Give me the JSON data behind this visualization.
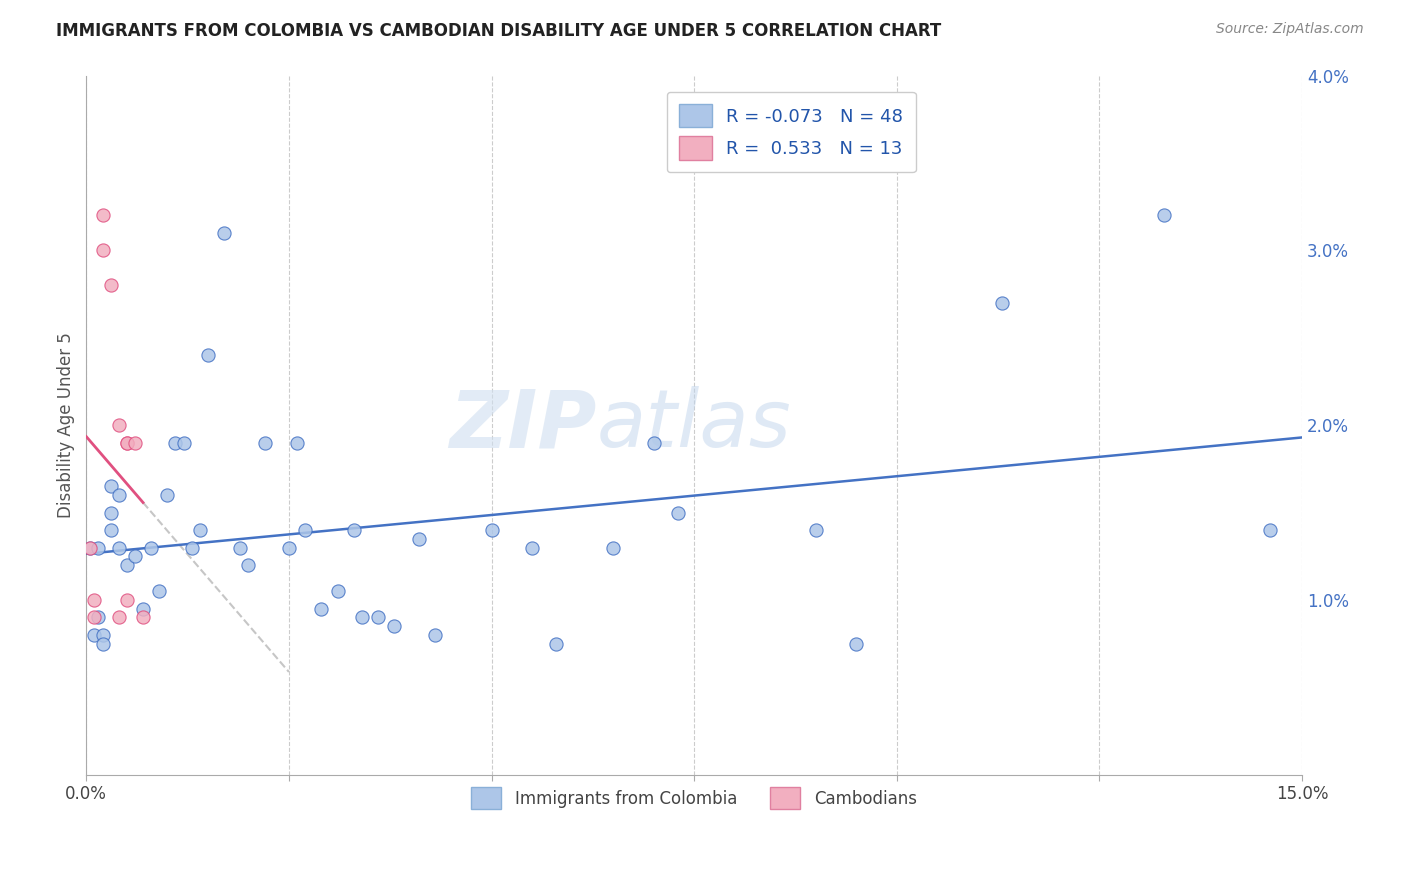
{
  "title": "IMMIGRANTS FROM COLOMBIA VS CAMBODIAN DISABILITY AGE UNDER 5 CORRELATION CHART",
  "source": "Source: ZipAtlas.com",
  "ylabel": "Disability Age Under 5",
  "legend_colombia": "Immigrants from Colombia",
  "legend_cambodian": "Cambodians",
  "R_colombia": -0.073,
  "N_colombia": 48,
  "R_cambodian": 0.533,
  "N_cambodian": 13,
  "color_colombia": "#adc6e8",
  "color_cambodian": "#f2afc0",
  "trendline_colombia": "#4472c4",
  "trendline_cambodian": "#e05080",
  "watermark": "ZIPatlas",
  "colombia_x": [
    0.0005,
    0.001,
    0.0015,
    0.0015,
    0.002,
    0.002,
    0.003,
    0.003,
    0.003,
    0.004,
    0.004,
    0.005,
    0.006,
    0.007,
    0.008,
    0.009,
    0.01,
    0.011,
    0.012,
    0.013,
    0.014,
    0.015,
    0.017,
    0.019,
    0.02,
    0.022,
    0.025,
    0.026,
    0.027,
    0.029,
    0.031,
    0.033,
    0.034,
    0.036,
    0.038,
    0.041,
    0.043,
    0.05,
    0.055,
    0.058,
    0.065,
    0.07,
    0.073,
    0.09,
    0.095,
    0.113,
    0.133,
    0.146
  ],
  "colombia_y": [
    0.013,
    0.008,
    0.013,
    0.009,
    0.008,
    0.0075,
    0.014,
    0.0165,
    0.015,
    0.016,
    0.013,
    0.012,
    0.0125,
    0.0095,
    0.013,
    0.0105,
    0.016,
    0.019,
    0.019,
    0.013,
    0.014,
    0.024,
    0.031,
    0.013,
    0.012,
    0.019,
    0.013,
    0.019,
    0.014,
    0.0095,
    0.0105,
    0.014,
    0.009,
    0.009,
    0.0085,
    0.0135,
    0.008,
    0.014,
    0.013,
    0.0075,
    0.013,
    0.019,
    0.015,
    0.014,
    0.0075,
    0.027,
    0.032,
    0.014
  ],
  "cambodian_x": [
    0.0005,
    0.001,
    0.001,
    0.002,
    0.002,
    0.003,
    0.004,
    0.004,
    0.005,
    0.005,
    0.005,
    0.006,
    0.007
  ],
  "cambodian_y": [
    0.013,
    0.01,
    0.009,
    0.032,
    0.03,
    0.028,
    0.02,
    0.009,
    0.019,
    0.01,
    0.019,
    0.019,
    0.009
  ],
  "xlim": [
    0.0,
    0.15
  ],
  "ylim": [
    0.0,
    0.04
  ],
  "xtick_positions": [
    0.0,
    0.025,
    0.05,
    0.075,
    0.1,
    0.125,
    0.15
  ],
  "ytick_positions": [
    0.0,
    0.01,
    0.02,
    0.03,
    0.04
  ],
  "ytick_labels": [
    "",
    "1.0%",
    "2.0%",
    "3.0%",
    "4.0%"
  ]
}
